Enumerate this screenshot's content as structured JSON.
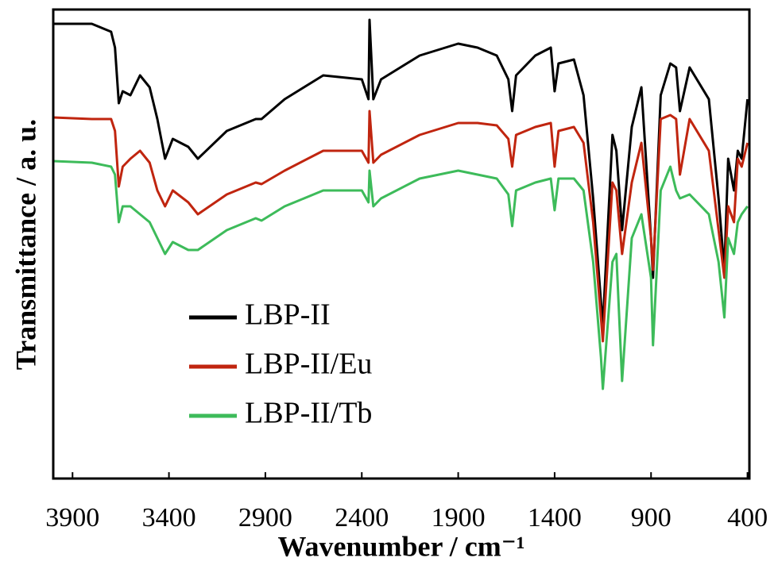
{
  "chart_data": {
    "type": "line",
    "xlabel": "Wavenumber / cm⁻¹",
    "ylabel": "Transmittance / a. u.",
    "x": [
      4000,
      3800,
      3700,
      3680,
      3660,
      3640,
      3600,
      3550,
      3500,
      3460,
      3420,
      3380,
      3300,
      3250,
      3100,
      2950,
      2920,
      2800,
      2600,
      2400,
      2365,
      2360,
      2340,
      2300,
      2100,
      1900,
      1800,
      1700,
      1640,
      1620,
      1600,
      1500,
      1420,
      1400,
      1380,
      1300,
      1250,
      1200,
      1160,
      1150,
      1100,
      1080,
      1050,
      1000,
      950,
      900,
      890,
      850,
      800,
      770,
      750,
      700,
      600,
      550,
      520,
      500,
      470,
      450,
      430,
      400
    ],
    "series": [
      {
        "name": "LBP-II",
        "color": "#000000",
        "values": [
          573,
          573,
          563,
          543,
          473,
          488,
          483,
          508,
          493,
          453,
          403,
          428,
          418,
          403,
          438,
          453,
          453,
          478,
          508,
          503,
          478,
          578,
          478,
          503,
          533,
          548,
          543,
          533,
          503,
          463,
          508,
          533,
          543,
          488,
          523,
          528,
          483,
          353,
          223,
          193,
          433,
          413,
          313,
          443,
          493,
          303,
          253,
          483,
          523,
          518,
          463,
          518,
          478,
          353,
          263,
          403,
          363,
          413,
          403,
          478
        ]
      },
      {
        "name": "LBP-II/Eu",
        "color": "#c0250f",
        "values": [
          455,
          453,
          453,
          438,
          368,
          393,
          403,
          413,
          398,
          363,
          343,
          363,
          348,
          333,
          358,
          373,
          371,
          388,
          413,
          413,
          398,
          463,
          398,
          408,
          433,
          448,
          448,
          445,
          428,
          393,
          433,
          443,
          448,
          393,
          438,
          443,
          423,
          323,
          203,
          173,
          373,
          363,
          283,
          373,
          423,
          303,
          263,
          453,
          458,
          453,
          383,
          453,
          413,
          313,
          253,
          343,
          323,
          403,
          393,
          423
        ]
      },
      {
        "name": "LBP-II/Tb",
        "color": "#3dbb5a",
        "values": [
          400,
          398,
          393,
          383,
          323,
          343,
          343,
          333,
          323,
          303,
          283,
          298,
          288,
          288,
          313,
          328,
          325,
          343,
          363,
          363,
          348,
          388,
          343,
          353,
          378,
          388,
          383,
          378,
          358,
          318,
          363,
          373,
          378,
          338,
          378,
          378,
          363,
          273,
          153,
          113,
          273,
          283,
          123,
          303,
          333,
          253,
          168,
          363,
          393,
          363,
          353,
          358,
          333,
          273,
          203,
          303,
          283,
          323,
          333,
          343
        ]
      }
    ],
    "xlim": [
      4000,
      390
    ],
    "ylim": [
      0,
      591
    ],
    "xticks": [
      3900,
      3400,
      2900,
      2400,
      1900,
      1400,
      900,
      400
    ]
  }
}
